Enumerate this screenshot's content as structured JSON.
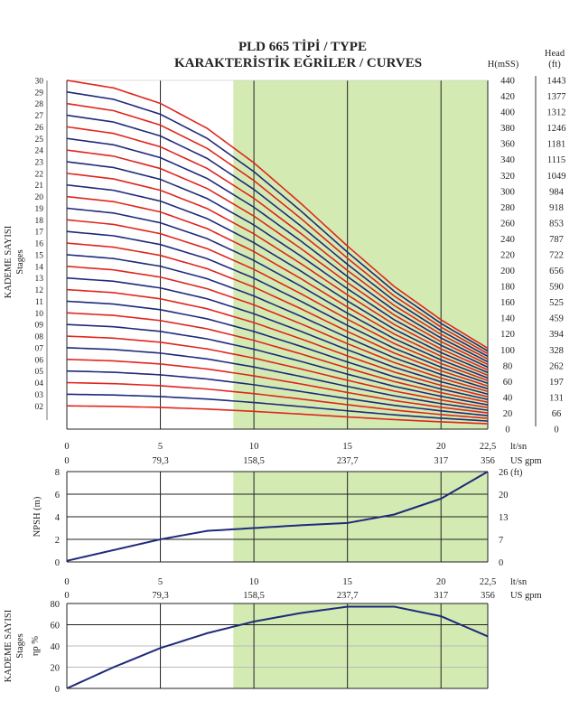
{
  "title": "PLD 665 TİPİ / TYPE",
  "subtitle": "KARAKTERİSTİK EĞRİLER / CURVES",
  "colors": {
    "band": "#d3ebb2",
    "red": "#e0251d",
    "blue": "#1f2a7a",
    "grid": "#222222",
    "curve": "#1f2a7a"
  },
  "chart_data": [
    {
      "type": "line",
      "name": "head",
      "ylabel_left_1": "KADEME SAYISI",
      "ylabel_left_2": "Stages",
      "ylabel_right_1": "H(mSS)",
      "ylabel_right_2_top": "Head",
      "ylabel_right_2_unit": "(ft)",
      "xlim": [
        0,
        22.5
      ],
      "ylim": [
        0,
        440
      ],
      "grid": true,
      "recommended_band": [
        8.9,
        22.5
      ],
      "x_ticks": [
        "0",
        "5",
        "10",
        "15",
        "20",
        "22,5"
      ],
      "x_unit_1": "lt/sn",
      "x_ticks_2": [
        "0",
        "79,3",
        "158,5",
        "237,7",
        "317",
        "356"
      ],
      "x_unit_2": "US gpm",
      "stage_labels": [
        "02",
        "03",
        "04",
        "05",
        "06",
        "07",
        "08",
        "09",
        "10",
        "11",
        "12",
        "13",
        "14",
        "15",
        "16",
        "17",
        "18",
        "19",
        "20",
        "21",
        "22",
        "23",
        "24",
        "25",
        "26",
        "27",
        "28",
        "29",
        "30"
      ],
      "h_ticks": [
        "0",
        "20",
        "40",
        "60",
        "80",
        "100",
        "120",
        "140",
        "160",
        "180",
        "200",
        "220",
        "240",
        "260",
        "280",
        "300",
        "320",
        "340",
        "360",
        "380",
        "400",
        "420",
        "440"
      ],
      "ft_ticks": [
        "0",
        "66",
        "131",
        "197",
        "262",
        "328",
        "394",
        "459",
        "525",
        "590",
        "656",
        "722",
        "787",
        "853",
        "918",
        "984",
        "1049",
        "1115",
        "1181",
        "1246",
        "1312",
        "1377",
        "1443"
      ],
      "per_stage_curve": {
        "x": [
          0,
          2.5,
          5,
          7.5,
          10,
          12.5,
          15,
          17.5,
          20,
          22.5
        ],
        "y": [
          14.67,
          14.35,
          13.7,
          12.65,
          11.2,
          9.5,
          7.7,
          6.0,
          4.6,
          3.4
        ]
      }
    },
    {
      "type": "line",
      "name": "npsh",
      "ylabel_left": "NPSH (m)",
      "ylabel_right": "(ft)",
      "xlim": [
        0,
        22.5
      ],
      "ylim": [
        0,
        8
      ],
      "y_ticks_left": [
        "0",
        "2",
        "4",
        "6",
        "8"
      ],
      "y_ticks_right": [
        "0",
        "7",
        "13",
        "20",
        "26 (ft)"
      ],
      "x_ticks": [
        "0",
        "5",
        "10",
        "15",
        "20",
        "22,5"
      ],
      "x_unit_1": "lt/sn",
      "x_ticks_2": [
        "0",
        "79,3",
        "158,5",
        "237,7",
        "317",
        "356"
      ],
      "x_unit_2": "US gpm",
      "series": [
        {
          "x": [
            0,
            2.5,
            5,
            7.5,
            10,
            12.5,
            15,
            17.5,
            20,
            22.5
          ],
          "y": [
            0.1,
            1.05,
            2.0,
            2.75,
            3.0,
            3.25,
            3.45,
            4.2,
            5.6,
            8.0
          ]
        }
      ]
    },
    {
      "type": "line",
      "name": "efficiency",
      "ylabel_left_1": "KADEME SAYISI",
      "ylabel_left_2": "Stages",
      "ylabel_left_3": "ηp %",
      "xlim": [
        0,
        22.5
      ],
      "ylim": [
        0,
        80
      ],
      "y_ticks": [
        "0",
        "20",
        "40",
        "60",
        "80"
      ],
      "series": [
        {
          "x": [
            0,
            2.5,
            5,
            7.5,
            10,
            12.5,
            15,
            17.5,
            20,
            22.5
          ],
          "y": [
            0,
            20,
            38,
            52,
            63,
            71,
            77,
            77,
            68,
            49
          ]
        }
      ]
    }
  ]
}
